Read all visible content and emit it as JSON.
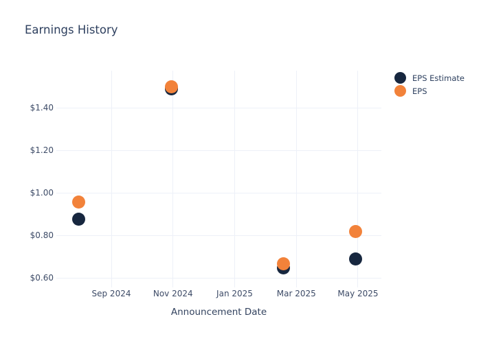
{
  "title": "Earnings History",
  "x_axis": {
    "title": "Announcement Date",
    "tick_labels": [
      "Sep 2024",
      "Nov 2024",
      "Jan 2025",
      "Mar 2025",
      "May 2025"
    ]
  },
  "y_axis": {
    "tick_labels": [
      "$0.60",
      "$0.80",
      "$1.00",
      "$1.20",
      "$1.40"
    ]
  },
  "legend": {
    "items": [
      {
        "label": "EPS Estimate",
        "color": "#17273f"
      },
      {
        "label": "EPS",
        "color": "#f2823a"
      }
    ]
  },
  "chart_data": {
    "type": "scatter",
    "title": "Earnings History",
    "xlabel": "Announcement Date",
    "ylabel": "",
    "grid": true,
    "legend_position": "right-top",
    "x_tick_labels": [
      "Sep 2024",
      "Nov 2024",
      "Jan 2025",
      "Mar 2025",
      "May 2025"
    ],
    "x_tick_positions_months_after_sep2024": [
      0,
      2,
      4,
      6,
      8
    ],
    "x_range_months_after_sep2024": [
      -1.783,
      8.758
    ],
    "y_tick_labels": [
      "$0.60",
      "$0.80",
      "$1.00",
      "$1.20",
      "$1.40"
    ],
    "y_tick_values": [
      0.6,
      0.8,
      1.0,
      1.2,
      1.4
    ],
    "y_range": [
      0.577,
      1.577
    ],
    "series": [
      {
        "name": "EPS Estimate",
        "color": "#17273f",
        "points": [
          {
            "x_months_after_sep2024": -1.06,
            "approx_date": "Aug 2024",
            "value": 0.88
          },
          {
            "x_months_after_sep2024": 1.96,
            "approx_date": "Nov 2024",
            "value": 1.49
          },
          {
            "x_months_after_sep2024": 5.59,
            "approx_date": "Feb 2025",
            "value": 0.65
          },
          {
            "x_months_after_sep2024": 7.92,
            "approx_date": "May 2025",
            "value": 0.69
          }
        ]
      },
      {
        "name": "EPS",
        "color": "#f2823a",
        "points": [
          {
            "x_months_after_sep2024": -1.06,
            "approx_date": "Aug 2024",
            "value": 0.96
          },
          {
            "x_months_after_sep2024": 1.96,
            "approx_date": "Nov 2024",
            "value": 1.5
          },
          {
            "x_months_after_sep2024": 5.59,
            "approx_date": "Feb 2025",
            "value": 0.67
          },
          {
            "x_months_after_sep2024": 7.92,
            "approx_date": "May 2025",
            "value": 0.82
          }
        ]
      }
    ]
  }
}
